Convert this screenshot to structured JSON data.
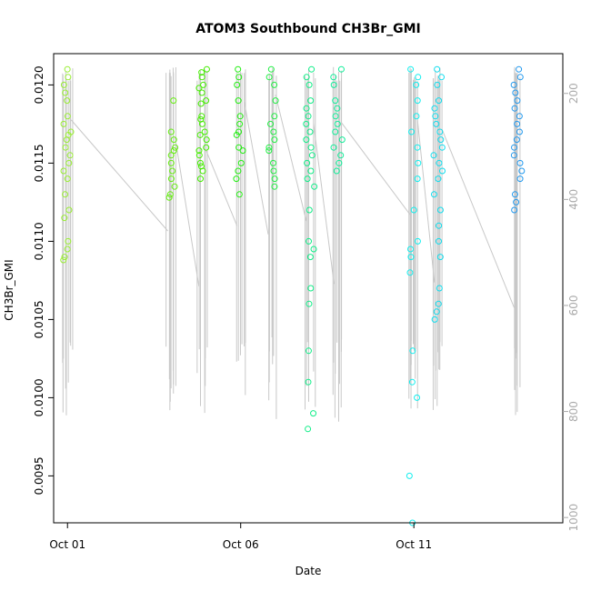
{
  "chart_data": {
    "type": "scatter",
    "title": "ATOM3 Southbound CH3Br_GMI",
    "xlabel": "Date",
    "ylabel": "CH3Br_GMI",
    "x_ticks": [
      "Oct 01",
      "Oct 06",
      "Oct 11"
    ],
    "y_ticks": [
      "0.0095",
      "0.0100",
      "0.0105",
      "0.0110",
      "0.0115",
      "0.0120"
    ],
    "y_right_ticks": [
      "200",
      "400",
      "600",
      "800",
      "1000"
    ],
    "ylim": [
      0.0092,
      0.0122
    ],
    "y_right_lim": [
      1010,
      125
    ],
    "y_right_note": "pressure overlay (hPa)",
    "xlim_days": [
      0.6,
      15.3
    ],
    "grid": false,
    "legend": "none",
    "series": [
      {
        "day": 1.0,
        "color": "#99ee33",
        "points": [
          0.0121,
          0.01205,
          0.012,
          0.01195,
          0.0119,
          0.0118,
          0.01175,
          0.0117,
          0.01168,
          0.01165,
          0.0116,
          0.01155,
          0.0115,
          0.01145,
          0.0114,
          0.0113,
          0.0112,
          0.01115,
          0.011,
          0.01095,
          0.0109,
          0.01088
        ]
      },
      {
        "day": 4.0,
        "color": "#66ee11",
        "points": [
          0.0119,
          0.0117,
          0.01165,
          0.0116,
          0.01158,
          0.01155,
          0.0115,
          0.01145,
          0.0114,
          0.01135,
          0.0113,
          0.01128
        ]
      },
      {
        "day": 4.9,
        "color": "#44ee00",
        "points": [
          0.0121,
          0.01208,
          0.01205,
          0.012,
          0.01198,
          0.01195,
          0.0119,
          0.01188,
          0.0118,
          0.01178,
          0.01175,
          0.0117,
          0.01168,
          0.01165,
          0.0116,
          0.01158,
          0.01155,
          0.0115,
          0.01148,
          0.01145,
          0.0114
        ]
      },
      {
        "day": 6.0,
        "color": "#22ee11",
        "points": [
          0.0121,
          0.01205,
          0.012,
          0.0119,
          0.0118,
          0.01175,
          0.0117,
          0.01168,
          0.0116,
          0.01158,
          0.0115,
          0.01145,
          0.0114,
          0.0113
        ]
      },
      {
        "day": 6.9,
        "color": "#22ee44",
        "points": [
          0.0121,
          0.01205,
          0.012,
          0.0119,
          0.0118,
          0.01175,
          0.0117,
          0.01165,
          0.0116,
          0.01158,
          0.0115,
          0.01145,
          0.0114,
          0.01135
        ]
      },
      {
        "day": 8.0,
        "color": "#11ee88",
        "points": [
          0.0121,
          0.01205,
          0.012,
          0.0119,
          0.01185,
          0.0118,
          0.01175,
          0.0117,
          0.01165,
          0.0116,
          0.01155,
          0.0115,
          0.01145,
          0.0114,
          0.01135,
          0.0112,
          0.011,
          0.01095,
          0.0109,
          0.0107,
          0.0106,
          0.0103,
          0.0101,
          0.0099,
          0.0098
        ]
      },
      {
        "day": 8.8,
        "color": "#11ee99",
        "points": [
          0.0121,
          0.01205,
          0.012,
          0.0119,
          0.01185,
          0.0118,
          0.01175,
          0.0117,
          0.01165,
          0.0116,
          0.01155,
          0.0115,
          0.01145
        ]
      },
      {
        "day": 11.0,
        "color": "#11eeee",
        "points": [
          0.0121,
          0.01205,
          0.012,
          0.0119,
          0.0118,
          0.0117,
          0.0116,
          0.0115,
          0.0114,
          0.0112,
          0.011,
          0.01095,
          0.0109,
          0.0108,
          0.0103,
          0.0101,
          0.01,
          0.0095,
          0.0092
        ]
      },
      {
        "day": 11.7,
        "color": "#11ddee",
        "points": [
          0.0121,
          0.01205,
          0.012,
          0.0119,
          0.01185,
          0.0118,
          0.01175,
          0.0117,
          0.01165,
          0.0116,
          0.01155,
          0.0115,
          0.01145,
          0.0114,
          0.0113,
          0.0112,
          0.0111,
          0.011,
          0.0109,
          0.0107,
          0.0106,
          0.01055,
          0.0105
        ]
      },
      {
        "day": 14.0,
        "color": "#2299ee",
        "points": [
          0.0121,
          0.01205,
          0.012,
          0.01195,
          0.0119,
          0.01185,
          0.0118,
          0.01175,
          0.0117,
          0.01165,
          0.0116,
          0.01155,
          0.0115,
          0.01145,
          0.0114,
          0.0113,
          0.01125,
          0.0112
        ]
      }
    ],
    "pressure_color": "#c8c8c8"
  }
}
